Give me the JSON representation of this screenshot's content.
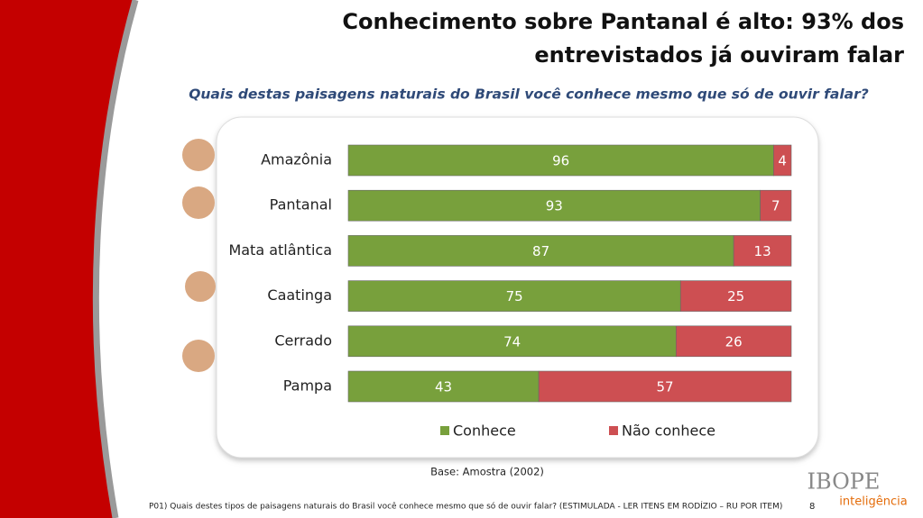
{
  "chart_data": {
    "type": "stacked-bar",
    "title": "Conhecimento sobre Pantanal é alto: 93% dos entrevistados já ouviram falar",
    "subtitle": "Quais destas  paisagens naturais do Brasil você conhece mesmo que só de ouvir falar?",
    "categories": [
      "Amazônia",
      "Pantanal",
      "Mata atlântica",
      "Caatinga",
      "Cerrado",
      "Pampa"
    ],
    "series": [
      {
        "name": "Conhece",
        "color": "#78a03c",
        "values": [
          96,
          93,
          87,
          75,
          74,
          43
        ]
      },
      {
        "name": "Não conhece",
        "color": "#cd4f52",
        "values": [
          4,
          7,
          13,
          25,
          26,
          57
        ]
      }
    ],
    "legend": "bottom"
  },
  "base": "Base: Amostra  (2002)",
  "footnote": "P01) Quais destes tipos de paisagens naturais do Brasil você conhece mesmo que só de ouvir falar? (ESTIMULADA - LER ITENS EM RODÍZIO – RU POR ITEM)",
  "page_number": "8",
  "logo": {
    "name": "IBOPE",
    "tagline": "inteligência"
  }
}
